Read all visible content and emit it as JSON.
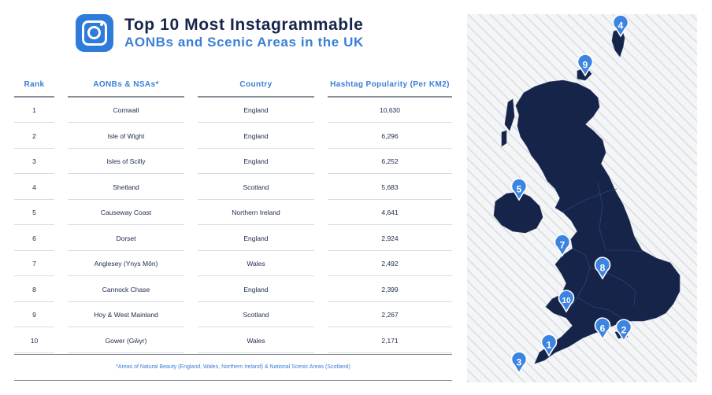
{
  "header": {
    "title_line1": "Top 10 Most Instagrammable",
    "title_line2": "AONBs and Scenic Areas in the UK",
    "icon": "instagram-icon"
  },
  "chart_data": {
    "type": "table",
    "title": "Top 10 Most Instagrammable AONBs and Scenic Areas in the UK",
    "columns": [
      "Rank",
      "AONBs & NSAs*",
      "Country",
      "Hashtag Popularity (Per KM2)"
    ],
    "rows": [
      [
        "1",
        "Cornwall",
        "England",
        "10,630"
      ],
      [
        "2",
        "Isle of Wight",
        "England",
        "6,296"
      ],
      [
        "3",
        "Isles of Scilly",
        "England",
        "6,252"
      ],
      [
        "4",
        "Shetland",
        "Scotland",
        "5,683"
      ],
      [
        "5",
        "Causeway Coast",
        "Northern Ireland",
        "4,641"
      ],
      [
        "6",
        "Dorset",
        "England",
        "2,924"
      ],
      [
        "7",
        "Anglesey (Ynys Môn)",
        "Wales",
        "2,492"
      ],
      [
        "8",
        "Cannock Chase",
        "England",
        "2,399"
      ],
      [
        "9",
        "Hoy & West Mainland",
        "Scotland",
        "2,267"
      ],
      [
        "10",
        "Gower (Gŵyr)",
        "Wales",
        "2,171"
      ]
    ],
    "footnote": "*Areas of Natural Beauty (England, Wales, Northern Ireland) & National Scenic Areas (Scotland)",
    "map_markers": [
      "4",
      "9",
      "5",
      "7",
      "8",
      "10",
      "6",
      "2",
      "1",
      "3"
    ]
  },
  "colors": {
    "accent": "#3b7fd6",
    "title": "#17254a",
    "map_fill": "#16244a",
    "marker": "#3d84e0"
  }
}
